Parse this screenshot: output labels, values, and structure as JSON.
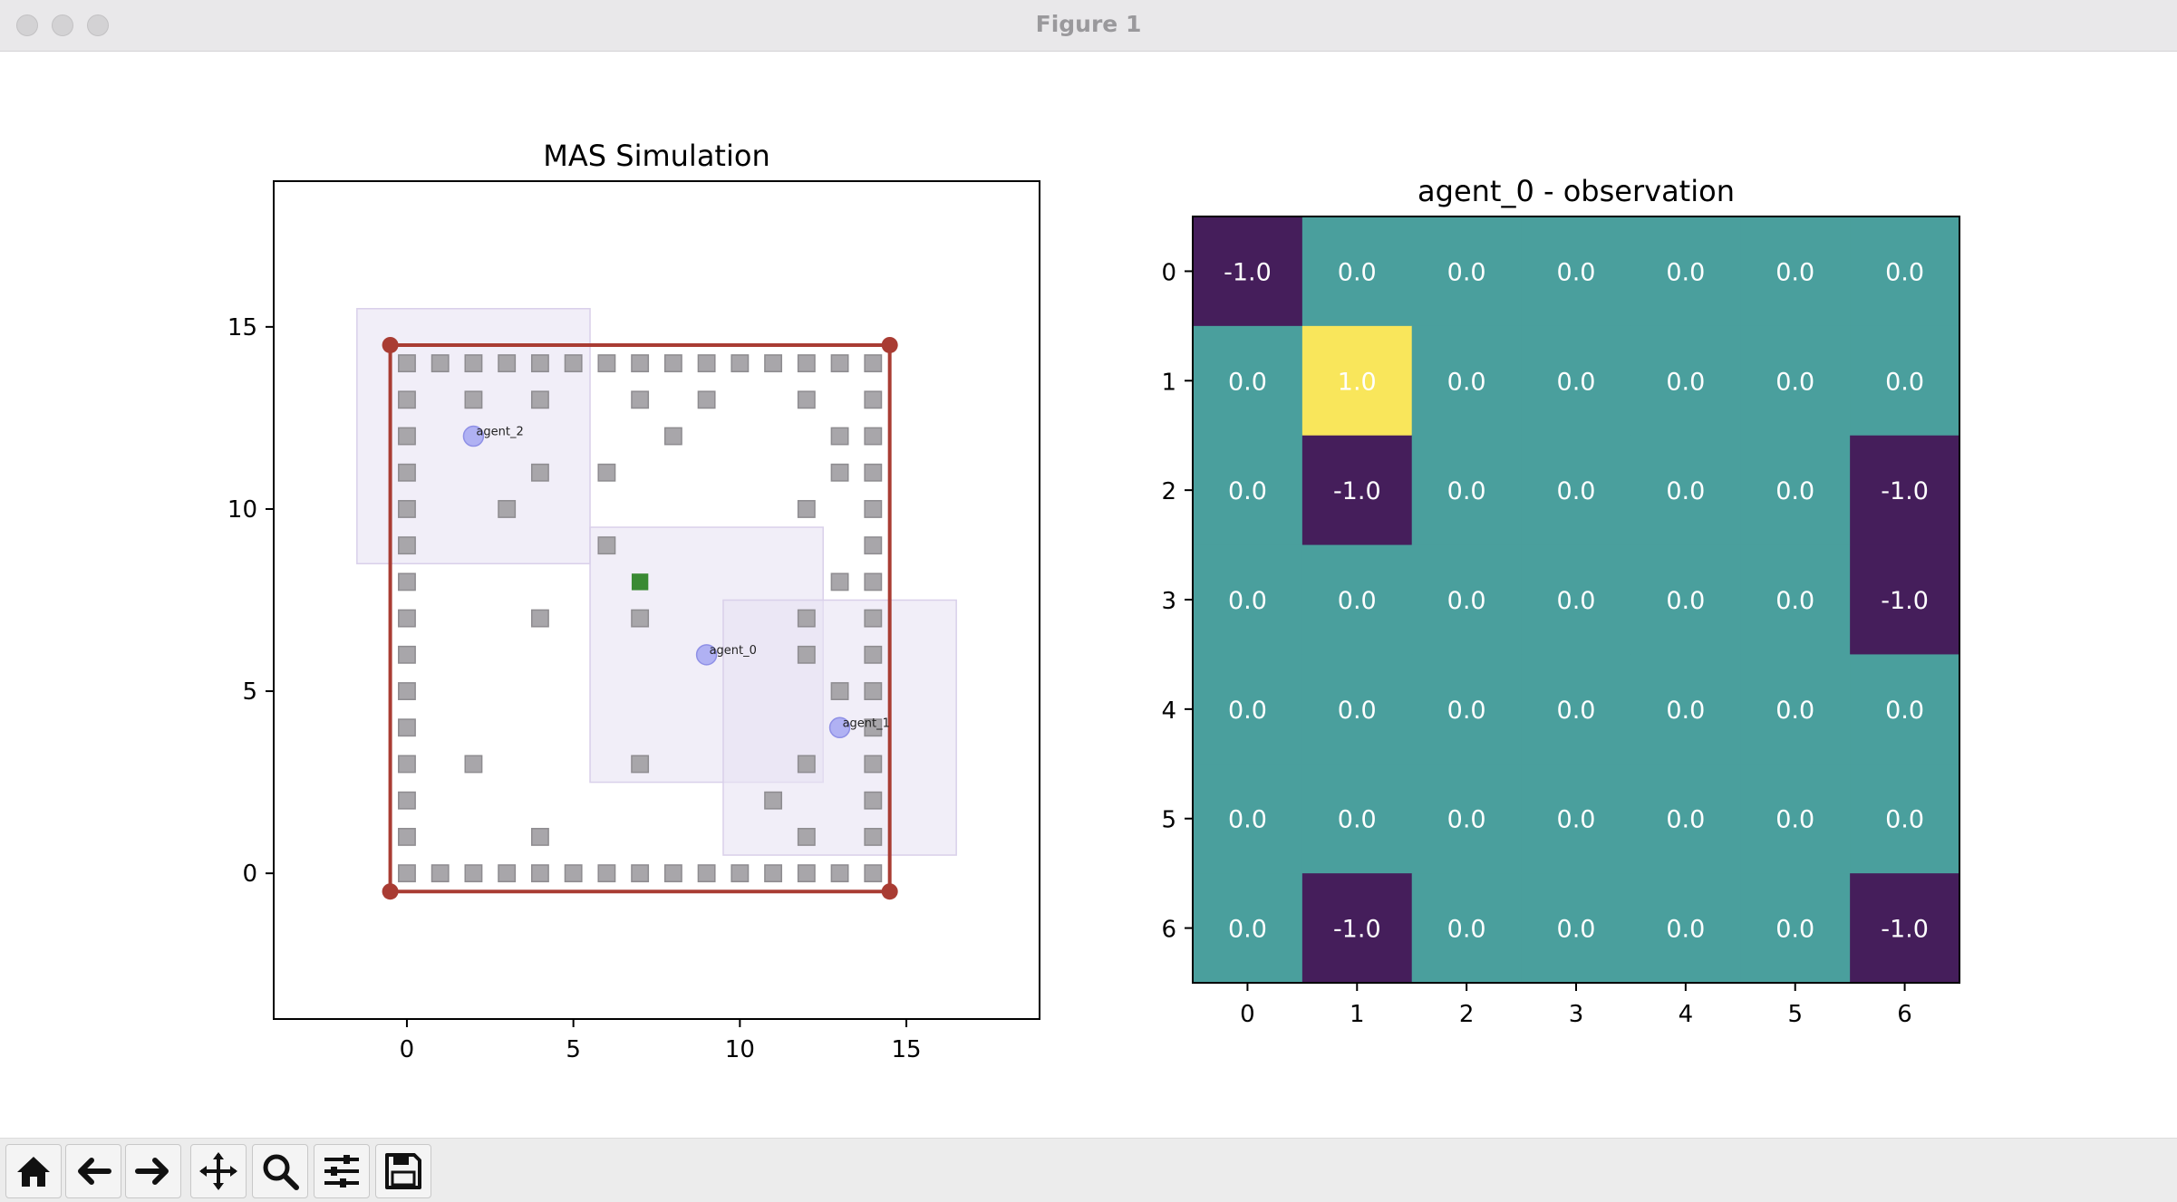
{
  "window": {
    "title": "Figure 1"
  },
  "toolbar": {
    "buttons": [
      {
        "name": "home-button",
        "icon": "home-icon"
      },
      {
        "name": "back-button",
        "icon": "arrow-left-icon"
      },
      {
        "name": "forward-button",
        "icon": "arrow-right-icon"
      },
      {
        "name": "pan-button",
        "icon": "move-icon"
      },
      {
        "name": "zoom-button",
        "icon": "magnifier-icon"
      },
      {
        "name": "configure-subplots-button",
        "icon": "sliders-icon"
      },
      {
        "name": "save-button",
        "icon": "floppy-disk-icon"
      }
    ]
  },
  "chart_data": [
    {
      "type": "scatter",
      "title": "MAS Simulation",
      "xlim": [
        -4,
        19
      ],
      "ylim": [
        -4,
        19
      ],
      "xticks": [
        0,
        5,
        10,
        15
      ],
      "yticks": [
        0,
        5,
        10,
        15
      ],
      "boundary": {
        "corners": [
          [
            -0.5,
            14.5
          ],
          [
            14.5,
            14.5
          ],
          [
            14.5,
            -0.5
          ],
          [
            -0.5,
            -0.5
          ]
        ],
        "color": "#a93c33"
      },
      "obstacles": [
        [
          0,
          14
        ],
        [
          1,
          14
        ],
        [
          2,
          14
        ],
        [
          3,
          14
        ],
        [
          4,
          14
        ],
        [
          5,
          14
        ],
        [
          6,
          14
        ],
        [
          7,
          14
        ],
        [
          8,
          14
        ],
        [
          9,
          14
        ],
        [
          10,
          14
        ],
        [
          11,
          14
        ],
        [
          12,
          14
        ],
        [
          13,
          14
        ],
        [
          14,
          14
        ],
        [
          0,
          0
        ],
        [
          1,
          0
        ],
        [
          2,
          0
        ],
        [
          3,
          0
        ],
        [
          4,
          0
        ],
        [
          5,
          0
        ],
        [
          6,
          0
        ],
        [
          7,
          0
        ],
        [
          8,
          0
        ],
        [
          9,
          0
        ],
        [
          10,
          0
        ],
        [
          11,
          0
        ],
        [
          12,
          0
        ],
        [
          13,
          0
        ],
        [
          14,
          0
        ],
        [
          0,
          13
        ],
        [
          0,
          12
        ],
        [
          0,
          11
        ],
        [
          0,
          10
        ],
        [
          0,
          9
        ],
        [
          0,
          8
        ],
        [
          0,
          7
        ],
        [
          0,
          6
        ],
        [
          0,
          5
        ],
        [
          0,
          4
        ],
        [
          0,
          3
        ],
        [
          0,
          2
        ],
        [
          0,
          1
        ],
        [
          14,
          13
        ],
        [
          14,
          12
        ],
        [
          14,
          11
        ],
        [
          14,
          10
        ],
        [
          14,
          9
        ],
        [
          14,
          8
        ],
        [
          14,
          7
        ],
        [
          14,
          6
        ],
        [
          14,
          5
        ],
        [
          14,
          4
        ],
        [
          14,
          3
        ],
        [
          14,
          2
        ],
        [
          14,
          1
        ],
        [
          2,
          13
        ],
        [
          4,
          13
        ],
        [
          7,
          13
        ],
        [
          9,
          13
        ],
        [
          12,
          13
        ],
        [
          8,
          12
        ],
        [
          13,
          12
        ],
        [
          4,
          11
        ],
        [
          6,
          11
        ],
        [
          13,
          11
        ],
        [
          3,
          10
        ],
        [
          12,
          10
        ],
        [
          6,
          9
        ],
        [
          13,
          8
        ],
        [
          4,
          7
        ],
        [
          7,
          7
        ],
        [
          12,
          7
        ],
        [
          12,
          6
        ],
        [
          13,
          5
        ],
        [
          2,
          3
        ],
        [
          7,
          3
        ],
        [
          12,
          3
        ],
        [
          11,
          2
        ],
        [
          4,
          1
        ],
        [
          12,
          1
        ]
      ],
      "goal": {
        "x": 7,
        "y": 8,
        "color": "#3a8a33"
      },
      "agents": [
        {
          "name": "agent_0",
          "x": 9,
          "y": 6
        },
        {
          "name": "agent_1",
          "x": 13,
          "y": 4
        },
        {
          "name": "agent_2",
          "x": 2,
          "y": 12
        }
      ],
      "observation_windows": [
        {
          "agent": "agent_2",
          "x0": -1.5,
          "x1": 5.5,
          "y0": 8.5,
          "y1": 15.5
        },
        {
          "agent": "agent_0",
          "x0": 5.5,
          "x1": 12.5,
          "y0": 2.5,
          "y1": 9.5
        },
        {
          "agent": "agent_1",
          "x0": 9.5,
          "x1": 16.5,
          "y0": 0.5,
          "y1": 7.5
        }
      ],
      "colors": {
        "obstacle": "#a8a6aa",
        "agent": "#a9aaf2",
        "window": "#e8e2f4"
      }
    },
    {
      "type": "heatmap",
      "title": "agent_0 - observation",
      "xticks": [
        0,
        1,
        2,
        3,
        4,
        5,
        6
      ],
      "yticks": [
        0,
        1,
        2,
        3,
        4,
        5,
        6
      ],
      "values": [
        [
          -1.0,
          0.0,
          0.0,
          0.0,
          0.0,
          0.0,
          0.0
        ],
        [
          0.0,
          1.0,
          0.0,
          0.0,
          0.0,
          0.0,
          0.0
        ],
        [
          0.0,
          -1.0,
          0.0,
          0.0,
          0.0,
          0.0,
          -1.0
        ],
        [
          0.0,
          0.0,
          0.0,
          0.0,
          0.0,
          0.0,
          -1.0
        ],
        [
          0.0,
          0.0,
          0.0,
          0.0,
          0.0,
          0.0,
          0.0
        ],
        [
          0.0,
          0.0,
          0.0,
          0.0,
          0.0,
          0.0,
          0.0
        ],
        [
          0.0,
          -1.0,
          0.0,
          0.0,
          0.0,
          0.0,
          -1.0
        ]
      ],
      "colormap": {
        "-1.0": "#451e5b",
        "0.0": "#4a9f9d",
        "1.0": "#f9e65b"
      }
    }
  ]
}
